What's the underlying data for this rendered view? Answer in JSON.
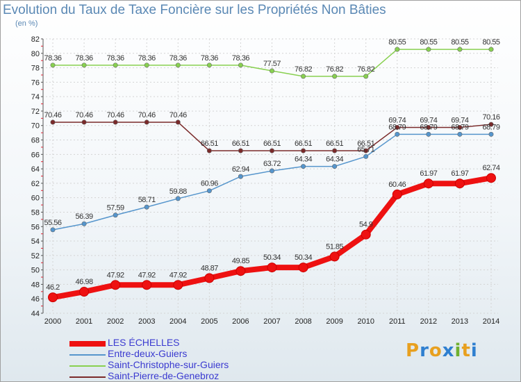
{
  "title": "Evolution du Taux de Taxe Foncière sur les Propriétés Non Bâties",
  "subtitle": "(en %)",
  "logo": {
    "text": "Proxiti",
    "colors": [
      "#e8a020",
      "#2f7fd0",
      "#e8a020",
      "#2f7fd0",
      "#70b030",
      "#e8a020",
      "#2f7fd0"
    ]
  },
  "chart_data": {
    "type": "line",
    "title": "Evolution du Taux de Taxe Foncière sur les Propriétés Non Bâties",
    "ylabel": "(en %)",
    "xlabel": "",
    "x": [
      "2000",
      "2001",
      "2002",
      "2003",
      "2004",
      "2005",
      "2006",
      "2007",
      "2008",
      "2009",
      "2010",
      "2011",
      "2012",
      "2013",
      "2014"
    ],
    "ylim": [
      44,
      82
    ],
    "yticks": [
      "44",
      "46",
      "48",
      "50",
      "52",
      "54",
      "56",
      "58",
      "60",
      "62",
      "64",
      "66",
      "68",
      "70",
      "72",
      "74",
      "76",
      "78",
      "80",
      "82"
    ],
    "grid": true,
    "legend_position": "bottom-left",
    "series": [
      {
        "name": "LES ÉCHELLES",
        "color": "#ee1111",
        "bold": true,
        "values": [
          46.2,
          46.98,
          47.92,
          47.92,
          47.92,
          48.87,
          49.85,
          50.34,
          50.34,
          51.85,
          54.9,
          60.46,
          61.97,
          61.97,
          62.74
        ],
        "labels": [
          "46.2",
          "46.98",
          "47.92",
          "47.92",
          "47.92",
          "48.87",
          "49.85",
          "50.34",
          "50.34",
          "51.85",
          "54.9",
          "60.46",
          "61.97",
          "61.97",
          "62.74"
        ]
      },
      {
        "name": "Entre-deux-Guiers",
        "color": "#5595cc",
        "bold": false,
        "values": [
          55.56,
          56.39,
          57.59,
          58.71,
          59.88,
          60.96,
          62.94,
          63.72,
          64.34,
          64.34,
          65.71,
          68.79,
          68.79,
          68.79,
          68.79
        ],
        "labels": [
          "55.56",
          "56.39",
          "57.59",
          "58.71",
          "59.88",
          "60.96",
          "62.94",
          "63.72",
          "64.34",
          "64.34",
          "65.71",
          "68.79",
          "68.79",
          "68.79",
          "68.79"
        ]
      },
      {
        "name": "Saint-Christophe-sur-Guiers",
        "color": "#88d050",
        "bold": false,
        "values": [
          78.36,
          78.36,
          78.36,
          78.36,
          78.36,
          78.36,
          78.36,
          77.57,
          76.82,
          76.82,
          76.82,
          80.55,
          80.55,
          80.55,
          80.55
        ],
        "labels": [
          "78.36",
          "78.36",
          "78.36",
          "78.36",
          "78.36",
          "78.36",
          "78.36",
          "77.57",
          "76.82",
          "76.82",
          "76.82",
          "80.55",
          "80.55",
          "80.55",
          "80.55"
        ]
      },
      {
        "name": "Saint-Pierre-de-Genebroz",
        "color": "#7a2a2a",
        "bold": false,
        "values": [
          70.46,
          70.46,
          70.46,
          70.46,
          70.46,
          66.51,
          66.51,
          66.51,
          66.51,
          66.51,
          66.51,
          69.74,
          69.74,
          69.74,
          70.16
        ],
        "labels": [
          "70.46",
          "70.46",
          "70.46",
          "70.46",
          "70.46",
          "66.51",
          "66.51",
          "66.51",
          "66.51",
          "66.51",
          "66.51",
          "69.74",
          "69.74",
          "69.74",
          "70.16"
        ]
      }
    ]
  }
}
